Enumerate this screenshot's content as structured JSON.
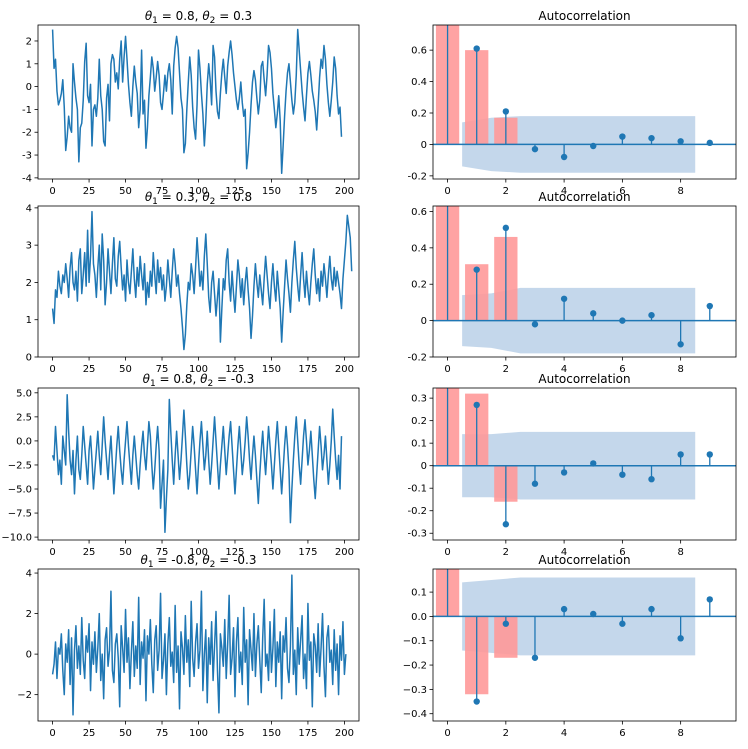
{
  "chart_data": [
    {
      "type": "line",
      "title": "θ₁ = 0.8, θ₂ = 0.3",
      "title_parts": {
        "t1": "θ",
        "s1": "1",
        "v1": " = 0.8, ",
        "t2": "θ",
        "s2": "2",
        "v2": " = 0.3"
      },
      "xlim": [
        -10,
        210
      ],
      "ylim": [
        -4.05,
        2.7
      ],
      "xticks": [
        0,
        25,
        50,
        75,
        100,
        125,
        150,
        175,
        200
      ],
      "yticks": [
        -4,
        -3,
        -2,
        -1,
        0,
        1,
        2
      ],
      "y": [
        2.5,
        0.8,
        1.2,
        -0.2,
        -0.8,
        -0.6,
        -0.3,
        0.3,
        -0.9,
        -2.8,
        -2.2,
        -1.3,
        -1.8,
        -2.0,
        1.0,
        0.2,
        -0.5,
        -1.0,
        -3.3,
        -1.8,
        -1.6,
        -0.6,
        1.1,
        1.9,
        -0.4,
        -0.7,
        0.1,
        -2.6,
        -1.0,
        -0.8,
        -1.3,
        -0.5,
        1.2,
        -0.4,
        -1.0,
        -2.4,
        -2.6,
        -0.5,
        0.1,
        -1.5,
        1.0,
        1.4,
        1.2,
        0.2,
        0.6,
        -0.1,
        1.2,
        2.0,
        0.2,
        1.3,
        2.2,
        1.2,
        0.1,
        -0.7,
        -1.3,
        0.0,
        0.9,
        0.2,
        -0.3,
        -1.8,
        -1.0,
        1.6,
        -1.2,
        -0.6,
        -2.7,
        -1.8,
        -0.4,
        0.4,
        1.3,
        0.8,
        -0.2,
        0.4,
        1.1,
        0.5,
        -0.7,
        -1.0,
        -0.3,
        0.5,
        -0.2,
        0.6,
        1.0,
        0.3,
        -1.2,
        0.9,
        1.7,
        2.2,
        1.7,
        0.6,
        -0.5,
        -1.0,
        -2.9,
        -2.5,
        -1.0,
        0.2,
        1.3,
        0.5,
        -0.9,
        -1.8,
        -2.3,
        -0.8,
        1.6,
        0.8,
        -0.3,
        -1.2,
        -2.6,
        -1.5,
        0.1,
        1.0,
        0.3,
        -0.8,
        1.8,
        1.3,
        -0.2,
        -1.1,
        -1.4,
        -0.3,
        0.6,
        1.2,
        0.4,
        -0.3,
        0.9,
        1.5,
        2.0,
        1.4,
        0.6,
        0.0,
        -0.6,
        -1.0,
        -0.5,
        0.2,
        -0.7,
        -1.3,
        -1.0,
        -3.6,
        -2.9,
        -2.0,
        -0.8,
        0.2,
        0.7,
        0.3,
        -0.5,
        -1.2,
        -0.6,
        0.9,
        1.1,
        0.3,
        -0.4,
        0.5,
        1.8,
        1.5,
        0.8,
        -0.3,
        -1.0,
        -1.8,
        -1.2,
        -0.4,
        -1.5,
        -3.8,
        -2.6,
        -1.3,
        -0.2,
        0.6,
        1.0,
        0.2,
        -0.6,
        -1.2,
        -0.7,
        0.5,
        2.5,
        1.6,
        0.7,
        -0.2,
        -0.9,
        -1.5,
        -0.4,
        0.6,
        1.1,
        0.5,
        -0.2,
        -0.6,
        -1.1,
        -1.9,
        -0.8,
        0.4,
        1.2,
        0.8,
        1.8,
        1.2,
        0.1,
        -0.7,
        -1.3,
        -0.6,
        0.2,
        1.3,
        0.8,
        -0.4,
        -1.2,
        -0.9,
        -2.2
      ]
    },
    {
      "type": "bar",
      "title": "Autocorrelation",
      "xlim": [
        -0.5,
        9.9
      ],
      "ylim": [
        -0.22,
        0.76
      ],
      "xticks": [
        0,
        2,
        4,
        6,
        8
      ],
      "yticks": [
        -0.2,
        0.0,
        0.2,
        0.4,
        0.6
      ],
      "lags": [
        0,
        1,
        2,
        3,
        4,
        5,
        6,
        7,
        8,
        9
      ],
      "acf": [
        1.0,
        0.61,
        0.21,
        -0.03,
        -0.08,
        -0.01,
        0.05,
        0.04,
        0.02,
        0.01
      ],
      "theoretical_bars": [
        1.0,
        0.6,
        0.17
      ],
      "confint": [
        0.14,
        0.17,
        0.18,
        0.18,
        0.18,
        0.18,
        0.18,
        0.18,
        0.18
      ]
    },
    {
      "type": "line",
      "title": "θ₁ = 0.3, θ₂ = 0.8",
      "title_parts": {
        "t1": "θ",
        "s1": "1",
        "v1": " = 0.3, ",
        "t2": "θ",
        "s2": "2",
        "v2": " = 0.8"
      },
      "xlim": [
        -10,
        210
      ],
      "ylim": [
        0,
        4.05
      ],
      "xticks": [
        0,
        25,
        50,
        75,
        100,
        125,
        150,
        175,
        200
      ],
      "yticks": [
        0,
        1,
        2,
        3,
        4
      ],
      "y": [
        1.3,
        0.9,
        1.8,
        1.6,
        2.3,
        1.9,
        1.7,
        2.2,
        2.0,
        2.5,
        2.1,
        1.6,
        2.4,
        2.8,
        2.0,
        1.8,
        2.3,
        1.5,
        2.6,
        2.9,
        1.7,
        2.2,
        2.8,
        1.9,
        3.4,
        2.0,
        2.7,
        3.9,
        2.5,
        2.2,
        1.6,
        2.4,
        3.0,
        1.8,
        3.3,
        2.6,
        1.4,
        2.0,
        2.9,
        2.3,
        1.7,
        2.5,
        3.2,
        2.1,
        1.9,
        2.7,
        3.1,
        2.4,
        1.8,
        2.2,
        1.5,
        2.6,
        2.0,
        1.7,
        2.3,
        2.9,
        2.1,
        1.6,
        2.4,
        1.9,
        2.7,
        2.2,
        1.8,
        2.5,
        1.4,
        2.0,
        1.6,
        2.3,
        1.9,
        2.8,
        2.2,
        1.7,
        2.6,
        2.0,
        2.4,
        1.8,
        2.2,
        1.5,
        1.9,
        2.6,
        2.1,
        1.6,
        2.3,
        2.9,
        2.5,
        1.9,
        2.2,
        1.7,
        1.3,
        0.8,
        0.2,
        0.6,
        1.4,
        2.0,
        1.8,
        2.5,
        2.2,
        1.7,
        2.4,
        3.2,
        2.6,
        1.9,
        2.3,
        1.8,
        2.7,
        3.3,
        2.5,
        1.6,
        1.2,
        2.0,
        2.3,
        1.7,
        1.1,
        1.6,
        2.1,
        0.4,
        1.3,
        2.1,
        1.8,
        2.6,
        2.9,
        2.0,
        1.5,
        2.3,
        1.7,
        1.2,
        1.9,
        2.6,
        2.2,
        1.6,
        2.1,
        1.4,
        2.0,
        2.4,
        1.8,
        1.3,
        0.5,
        1.1,
        1.9,
        2.5,
        2.0,
        1.6,
        2.2,
        1.8,
        1.4,
        2.1,
        2.7,
        2.2,
        1.7,
        1.3,
        2.0,
        2.5,
        1.9,
        1.5,
        2.3,
        1.8,
        1.3,
        0.4,
        1.2,
        1.9,
        2.6,
        2.1,
        1.7,
        1.2,
        2.0,
        2.6,
        3.1,
        2.4,
        1.9,
        1.5,
        2.2,
        2.8,
        2.1,
        1.6,
        2.3,
        1.8,
        1.4,
        2.0,
        2.5,
        2.9,
        2.2,
        1.7,
        2.1,
        1.5,
        2.3,
        1.9,
        2.5,
        2.1,
        1.6,
        2.2,
        2.7,
        2.1,
        1.8,
        2.4,
        1.9,
        2.3,
        2.0,
        1.7,
        1.3,
        2.1,
        2.6,
        3.1,
        3.8,
        3.5,
        3.2,
        2.3
      ]
    },
    {
      "type": "bar",
      "title": "Autocorrelation",
      "xlim": [
        -0.5,
        9.9
      ],
      "ylim": [
        -0.2,
        0.63
      ],
      "xticks": [
        0,
        2,
        4,
        6,
        8
      ],
      "yticks": [
        -0.2,
        0.0,
        0.2,
        0.4,
        0.6
      ],
      "lags": [
        0,
        1,
        2,
        3,
        4,
        5,
        6,
        7,
        8,
        9
      ],
      "acf": [
        1.0,
        0.28,
        0.51,
        -0.02,
        0.12,
        0.04,
        0.0,
        0.03,
        -0.13,
        0.08
      ],
      "theoretical_bars": [
        1.0,
        0.31,
        0.46
      ],
      "confint": [
        0.14,
        0.15,
        0.18,
        0.18,
        0.18,
        0.18,
        0.18,
        0.18,
        0.18
      ]
    },
    {
      "type": "line",
      "title": "θ₁ = 0.8, θ₂ = -0.3",
      "title_parts": {
        "t1": "θ",
        "s1": "1",
        "v1": " = 0.8, ",
        "t2": "θ",
        "s2": "2",
        "v2": " = -0.3"
      },
      "xlim": [
        -10,
        210
      ],
      "ylim": [
        -10.3,
        5.5
      ],
      "xticks": [
        0,
        25,
        50,
        75,
        100,
        125,
        150,
        175,
        200
      ],
      "yticks": [
        -10.0,
        -7.5,
        -5.0,
        -2.5,
        0.0,
        2.5,
        5.0
      ],
      "ytick_labels": [
        "−10.0",
        "−7.5",
        "−5.0",
        "−2.5",
        "0.0",
        "2.5",
        "5.0"
      ],
      "y": [
        -1.5,
        -2.0,
        1.5,
        -1.0,
        -3.5,
        -2.0,
        -4.5,
        0.5,
        -1.0,
        -2.5,
        4.8,
        1.0,
        -2.0,
        -3.5,
        -1.0,
        -5.5,
        -2.0,
        0.5,
        -3.0,
        -4.0,
        -1.5,
        1.5,
        -0.5,
        -2.5,
        -4.5,
        -1.0,
        0.5,
        -2.0,
        -5.0,
        -3.0,
        -1.0,
        1.0,
        -1.5,
        -3.5,
        -0.5,
        2.5,
        0.0,
        -2.0,
        -4.0,
        -1.5,
        0.5,
        -2.5,
        -5.5,
        -3.0,
        -0.5,
        1.5,
        -1.0,
        -3.0,
        -4.5,
        -2.0,
        0.0,
        2.0,
        -0.5,
        -2.5,
        -4.5,
        -1.5,
        0.5,
        -1.5,
        -3.5,
        -5.0,
        -2.5,
        -0.5,
        1.0,
        -1.5,
        -3.0,
        -0.5,
        2.0,
        0.5,
        -2.5,
        -5.0,
        -3.0,
        -0.5,
        1.5,
        -1.0,
        -7.0,
        -4.5,
        -2.0,
        -9.5,
        -6.0,
        -3.0,
        4.3,
        1.0,
        -2.0,
        -4.5,
        -1.5,
        1.0,
        -1.5,
        -4.0,
        -2.0,
        0.5,
        3.2,
        0.5,
        -2.5,
        -5.0,
        -3.5,
        -1.0,
        1.5,
        -0.5,
        -3.0,
        -5.5,
        -2.5,
        0.0,
        2.0,
        -0.5,
        -3.0,
        -1.5,
        1.0,
        -2.0,
        -4.5,
        -2.5,
        0.0,
        2.5,
        0.0,
        -2.5,
        -5.0,
        -2.5,
        -0.5,
        1.5,
        -1.0,
        -3.5,
        -1.5,
        0.5,
        2.0,
        -0.5,
        -3.0,
        -5.5,
        -3.0,
        -0.5,
        1.5,
        -1.0,
        -3.5,
        -2.0,
        0.0,
        2.5,
        0.5,
        -2.0,
        -4.0,
        -1.5,
        0.5,
        -1.5,
        -4.0,
        -6.5,
        -3.5,
        -1.0,
        1.0,
        -1.5,
        -3.5,
        -1.0,
        1.5,
        -0.5,
        -2.5,
        -5.0,
        -2.5,
        0.0,
        2.0,
        -0.5,
        -3.0,
        -5.5,
        -3.0,
        -0.5,
        1.5,
        -0.5,
        -3.0,
        -8.5,
        -5.0,
        -2.0,
        0.5,
        2.5,
        0.0,
        -2.5,
        -4.5,
        -2.0,
        0.5,
        2.2,
        0.0,
        -2.5,
        -1.0,
        1.0,
        -1.5,
        -4.0,
        -6.0,
        -3.5,
        -1.0,
        1.5,
        -0.5,
        -3.0,
        -1.5,
        0.5,
        -2.0,
        -4.5,
        -2.5,
        0.0,
        3.3,
        0.5,
        -2.0,
        -4.0,
        -1.5,
        -5.0,
        0.5
      ]
    },
    {
      "type": "bar",
      "title": "Autocorrelation",
      "xlim": [
        -0.5,
        9.9
      ],
      "ylim": [
        -0.33,
        0.345
      ],
      "xticks": [
        0,
        2,
        4,
        6,
        8
      ],
      "yticks": [
        -0.3,
        -0.2,
        -0.1,
        0.0,
        0.1,
        0.2,
        0.3
      ],
      "lags": [
        0,
        1,
        2,
        3,
        4,
        5,
        6,
        7,
        8,
        9
      ],
      "acf": [
        1.0,
        0.27,
        -0.26,
        -0.08,
        -0.03,
        0.01,
        -0.04,
        -0.06,
        0.05,
        0.05
      ],
      "theoretical_bars": [
        1.0,
        0.32,
        -0.16
      ],
      "confint": [
        0.14,
        0.14,
        0.15,
        0.15,
        0.15,
        0.15,
        0.15,
        0.15,
        0.15
      ]
    },
    {
      "type": "line",
      "title": "θ₁ = -0.8, θ₂ = -0.3",
      "title_parts": {
        "t1": "θ",
        "s1": "1",
        "v1": " = -0.8, ",
        "t2": "θ",
        "s2": "2",
        "v2": " = -0.3"
      },
      "xlim": [
        -10,
        210
      ],
      "ylim": [
        -3.3,
        4.2
      ],
      "xticks": [
        0,
        25,
        50,
        75,
        100,
        125,
        150,
        175,
        200
      ],
      "yticks": [
        -2,
        0,
        2,
        4
      ],
      "ytick_labels": [
        "−2",
        "0",
        "2",
        "4"
      ],
      "y": [
        -1.0,
        -0.5,
        0.6,
        -1.2,
        0.3,
        0.0,
        1.0,
        -0.8,
        -2.0,
        0.5,
        -0.4,
        1.2,
        -1.5,
        0.8,
        -3.0,
        0.2,
        1.4,
        -0.7,
        0.4,
        -1.0,
        1.8,
        -0.3,
        -1.2,
        0.9,
        0.1,
        1.5,
        -1.8,
        0.6,
        -0.5,
        1.1,
        -0.9,
        0.3,
        2.0,
        -1.3,
        0.0,
        -2.2,
        0.7,
        1.3,
        -0.6,
        0.2,
        3.1,
        -0.8,
        -1.4,
        0.5,
        1.0,
        -0.2,
        -2.6,
        1.4,
        0.3,
        -0.9,
        2.2,
        -0.4,
        0.8,
        -1.7,
        0.1,
        1.6,
        -1.1,
        0.4,
        -0.7,
        2.8,
        -1.5,
        0.6,
        -0.2,
        1.2,
        -2.3,
        0.9,
        0.0,
        1.7,
        -0.5,
        -1.9,
        0.7,
        1.4,
        -0.8,
        0.2,
        3.0,
        -1.2,
        -0.3,
        1.0,
        -2.0,
        0.5,
        1.8,
        -0.6,
        0.1,
        -1.4,
        2.4,
        -0.9,
        0.4,
        -2.7,
        1.1,
        0.3,
        -1.0,
        1.9,
        -0.4,
        0.7,
        -1.6,
        2.6,
        -0.2,
        -1.1,
        0.6,
        1.5,
        -0.7,
        0.2,
        3.1,
        -1.8,
        0.0,
        1.2,
        -2.4,
        0.8,
        -0.5,
        1.6,
        -1.3,
        0.4,
        2.1,
        -0.8,
        -2.9,
        1.0,
        0.3,
        -0.6,
        1.7,
        -1.2,
        0.5,
        2.9,
        -1.0,
        -0.2,
        1.3,
        -2.1,
        0.6,
        1.8,
        -0.9,
        0.1,
        -1.5,
        2.3,
        -0.4,
        0.7,
        -2.5,
        1.2,
        0.2,
        -0.8,
        2.0,
        -1.1,
        0.5,
        1.4,
        -0.3,
        -1.9,
        0.8,
        2.7,
        -0.6,
        0.0,
        -1.3,
        1.6,
        -0.9,
        0.3,
        2.2,
        -1.6,
        0.6,
        -0.4,
        1.1,
        -2.2,
        0.9,
        0.1,
        1.8,
        -0.7,
        -1.4,
        0.4,
        3.9,
        -1.0,
        0.2,
        -2.0,
        1.3,
        -0.5,
        0.7,
        1.9,
        -1.2,
        0.0,
        -1.7,
        2.5,
        -0.3,
        0.6,
        -2.6,
        1.0,
        0.4,
        -0.9,
        1.5,
        -1.1,
        0.3,
        2.0,
        -0.6,
        -2.1,
        0.8,
        1.4,
        -0.4,
        0.2,
        -1.5,
        1.2,
        -0.8,
        0.5,
        -2.0,
        0.9,
        -0.3,
        1.6,
        -1.0,
        0.0
      ]
    },
    {
      "type": "bar",
      "title": "Autocorrelation",
      "xlim": [
        -0.5,
        9.9
      ],
      "ylim": [
        -0.43,
        0.195
      ],
      "xticks": [
        0,
        2,
        4,
        6,
        8
      ],
      "yticks": [
        -0.4,
        -0.3,
        -0.2,
        -0.1,
        0.0,
        0.1
      ],
      "ytick_labels": [
        "−0.4",
        "−0.3",
        "−0.2",
        "−0.1",
        "0.0",
        "0.1"
      ],
      "lags": [
        0,
        1,
        2,
        3,
        4,
        5,
        6,
        7,
        8,
        9
      ],
      "acf": [
        1.0,
        -0.35,
        -0.03,
        -0.17,
        0.03,
        0.01,
        -0.03,
        0.03,
        -0.09,
        0.07
      ],
      "theoretical_bars": [
        1.0,
        -0.32,
        -0.17
      ],
      "confint": [
        0.14,
        0.15,
        0.16,
        0.16,
        0.16,
        0.16,
        0.16,
        0.16,
        0.16
      ]
    }
  ],
  "colors": {
    "line": "#1f77b4",
    "band": "#c1d5ea",
    "bar": "#ff9999",
    "axis": "#000000"
  }
}
